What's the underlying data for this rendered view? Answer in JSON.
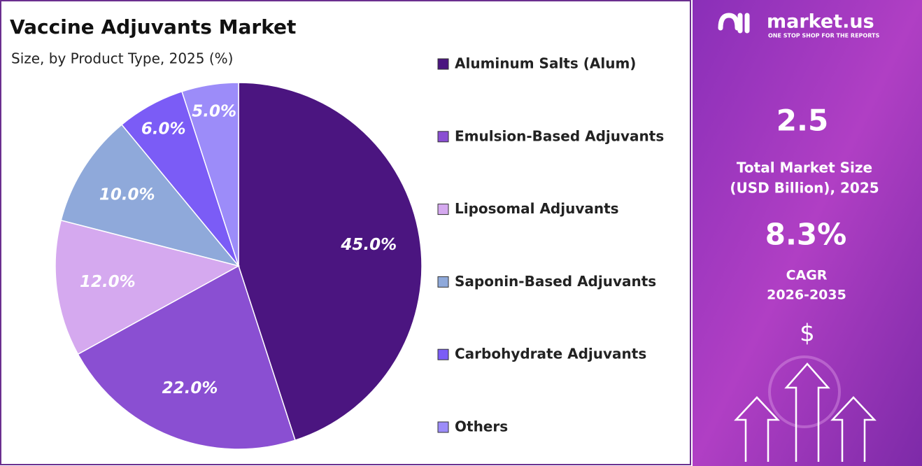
{
  "chart_data": {
    "type": "pie",
    "title": "Vaccine Adjuvants Market",
    "subtitle": "Size, by Product Type, 2025 (%)",
    "categories": [
      "Aluminum Salts (Alum)",
      "Emulsion-Based Adjuvants",
      "Liposomal Adjuvants",
      "Saponin-Based Adjuvants",
      "Carbohydrate Adjuvants",
      "Others"
    ],
    "values": [
      45,
      22,
      12,
      10,
      6,
      5
    ],
    "value_labels": [
      "45.0%",
      "22.0%",
      "12.0%",
      "10.0%",
      "6.0%",
      "5.0%"
    ],
    "colors": [
      "#4b1580",
      "#8a4fd2",
      "#d5a9ef",
      "#8fa9da",
      "#7b5cf6",
      "#9c8cf9"
    ],
    "legend": "right"
  },
  "panel": {
    "brand": "market.us",
    "tagline": "ONE STOP SHOP FOR THE REPORTS",
    "market_size": "2.5",
    "market_size_label": [
      "Total Market Size",
      "(USD Billion), 2025"
    ],
    "cagr": "8.3%",
    "cagr_label": [
      "CAGR",
      "2026-2035"
    ],
    "currency": "$"
  }
}
